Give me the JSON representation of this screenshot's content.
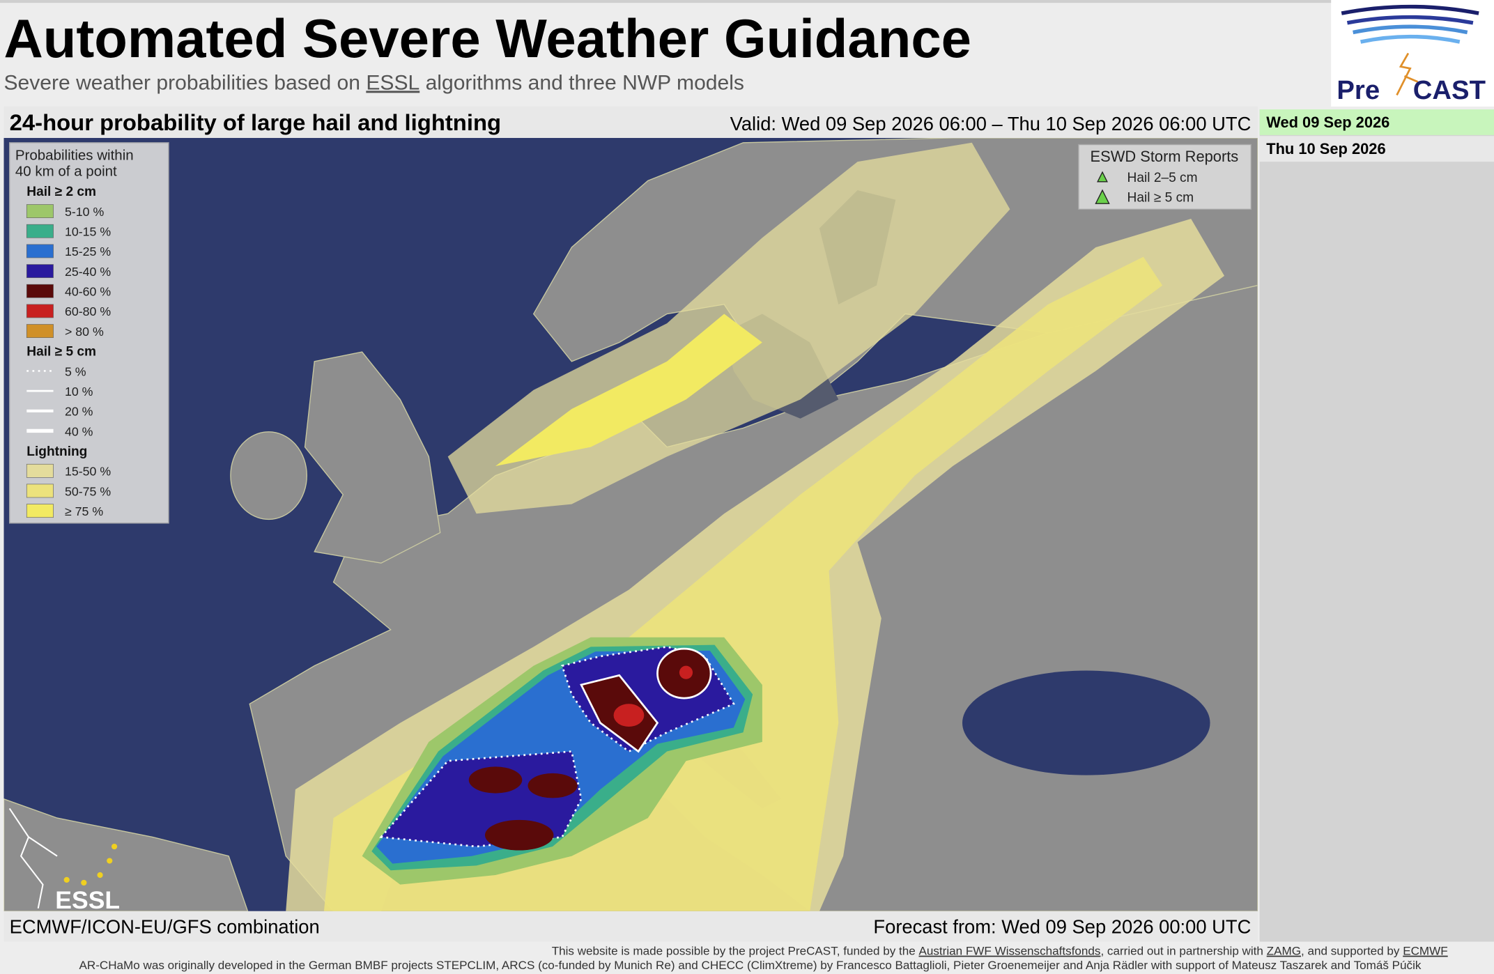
{
  "header": {
    "title": "Automated Severe Weather Guidance",
    "subtitle": [
      "Severe weather probabilities based on ",
      "ESSL",
      " algorithms and three NWP models"
    ]
  },
  "logo": {
    "pre": "Pre",
    "cast": "CAST"
  },
  "map": {
    "title": "24-hour probability of large hail and lightning",
    "valid": "Valid: Wed 09 Sep 2026 06:00 – Thu 10 Sep 2026 06:00 UTC",
    "model": "ECMWF/ICON-EU/GFS combination",
    "forecast_from": "Forecast from: Wed 09 Sep 2026 00:00 UTC",
    "watermark": "ESSL"
  },
  "legend": {
    "heading": [
      "Probabilities within",
      "40 km of a point"
    ],
    "groups": [
      {
        "title": "Hail ≥ 2 cm",
        "items": [
          {
            "label": "5-10 %",
            "color": "#9dc76a"
          },
          {
            "label": "10-15 %",
            "color": "#3aae8a"
          },
          {
            "label": "15-25 %",
            "color": "#2a6fd0"
          },
          {
            "label": "25-40 %",
            "color": "#2a1a9e"
          },
          {
            "label": "40-60 %",
            "color": "#5a0a0a"
          },
          {
            "label": "60-80 %",
            "color": "#c82020"
          },
          {
            "label": "> 80 %",
            "color": "#d09028"
          }
        ]
      },
      {
        "title": "Hail ≥ 5 cm",
        "items": [
          {
            "label": "5 %",
            "line": "dotted"
          },
          {
            "label": "10 %",
            "line": "solid"
          },
          {
            "label": "20 %",
            "line": "solid"
          },
          {
            "label": "40 %",
            "line": "solid"
          }
        ]
      },
      {
        "title": "Lightning",
        "items": [
          {
            "label": "15-50 %",
            "color": "#e4dc9c"
          },
          {
            "label": "50-75 %",
            "color": "#ece27c"
          },
          {
            "label": "≥ 75 %",
            "color": "#f2ea62"
          }
        ]
      }
    ]
  },
  "storm_reports": {
    "title": "ESWD Storm Reports",
    "items": [
      "Hail 2–5 cm",
      "Hail ≥ 5 cm"
    ]
  },
  "dates": {
    "items": [
      "Wed 09 Sep 2026",
      "Thu 10 Sep 2026"
    ],
    "selected": 0
  },
  "footer": {
    "line1": [
      "This website is made possible by the project PreCAST, funded by the ",
      "Austrian FWF Wissenschaftsfonds",
      ", carried out in partnership with ",
      "ZAMG",
      ", and supported by ",
      "ECMWF"
    ],
    "line2": "AR-CHaMo was originally developed in the German BMBF projects STEPCLIM, ARCS (co-funded by Munich Re) and CHECC (ClimXtreme) by Francesco Battaglioli, Pieter Groenemeijer and Anja Rädler with support of Mateusz Taszarek and Tomáš Púčik"
  }
}
